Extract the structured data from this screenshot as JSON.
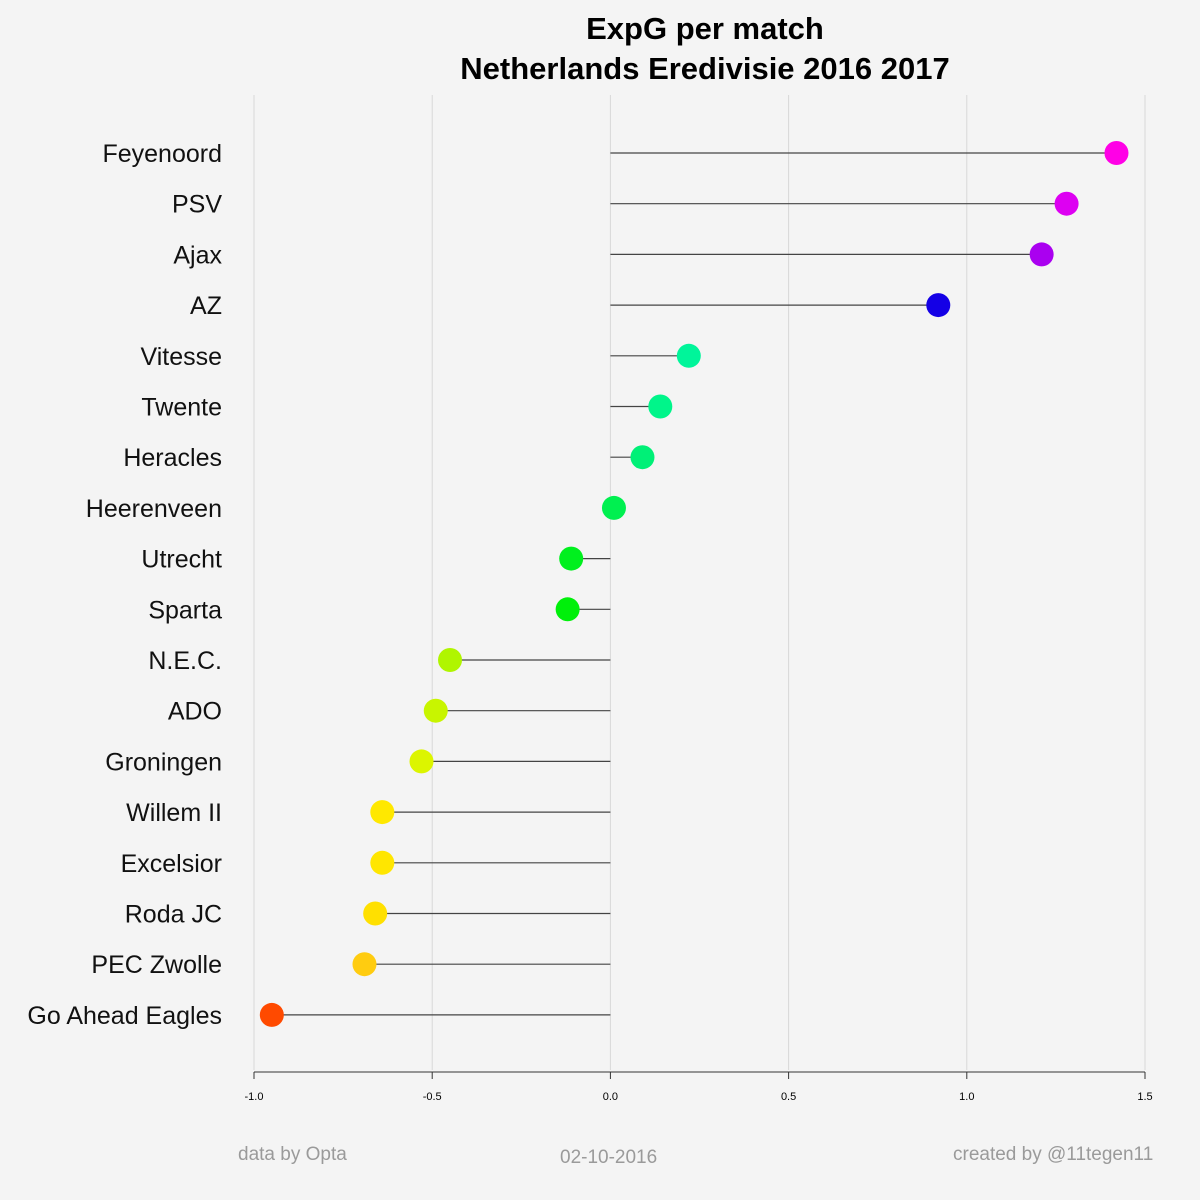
{
  "title_line1": "ExpG per match",
  "title_line2": "Netherlands Eredivisie 2016 2017",
  "footer": {
    "left": "data by Opta",
    "center": "02-10-2016",
    "right": "created by @11tegen11"
  },
  "chart_data": {
    "type": "lollipop",
    "orientation": "horizontal",
    "categories": [
      "Feyenoord",
      "PSV",
      "Ajax",
      "AZ",
      "Vitesse",
      "Twente",
      "Heracles",
      "Heerenveen",
      "Utrecht",
      "Sparta",
      "N.E.C.",
      "ADO",
      "Groningen",
      "Willem II",
      "Excelsior",
      "Roda JC",
      "PEC Zwolle",
      "Go Ahead Eagles"
    ],
    "values": [
      1.42,
      1.28,
      1.21,
      0.92,
      0.22,
      0.14,
      0.09,
      0.01,
      -0.11,
      -0.12,
      -0.45,
      -0.49,
      -0.53,
      -0.64,
      -0.64,
      -0.66,
      -0.69,
      -0.95
    ],
    "colors": [
      "#ff00e6",
      "#dd00f2",
      "#aa00f0",
      "#1400e6",
      "#00f59a",
      "#00f58a",
      "#00f077",
      "#00f050",
      "#00f01e",
      "#00f00a",
      "#b0f500",
      "#c8f500",
      "#dcf500",
      "#ffe800",
      "#ffe600",
      "#ffe000",
      "#ffcc10",
      "#ff4a00"
    ],
    "xlim": [
      -1.0,
      1.5
    ],
    "xticks": [
      "-1.0",
      "-0.5",
      "0.0",
      "0.5",
      "1.0",
      "1.5"
    ],
    "grid": true
  }
}
